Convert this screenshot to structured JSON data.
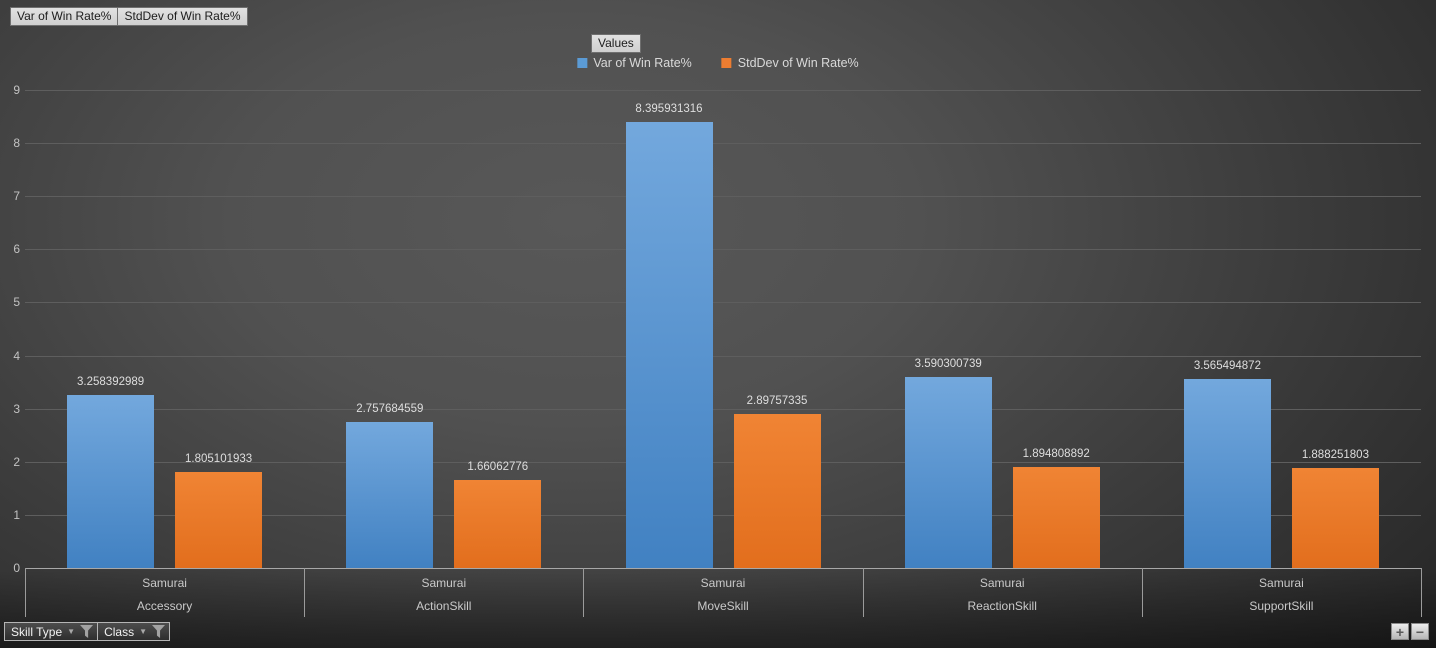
{
  "value_field_buttons": [
    {
      "label": "Var of Win Rate%"
    },
    {
      "label": "StdDev of Win Rate%"
    }
  ],
  "values_button_label": "Values",
  "legend": {
    "items": [
      {
        "label": "Var of Win Rate%",
        "color": "#5B9BD5"
      },
      {
        "label": "StdDev of Win Rate%",
        "color": "#ED7D31"
      }
    ]
  },
  "chart_data": {
    "type": "bar",
    "title": "",
    "xlabel": "",
    "ylabel": "",
    "ylim": [
      0,
      9
    ],
    "yticks": [
      0,
      1,
      2,
      3,
      4,
      5,
      6,
      7,
      8,
      9
    ],
    "grid": true,
    "legend_position": "top",
    "categories": [
      {
        "group": "Samurai",
        "label": "Accessory"
      },
      {
        "group": "Samurai",
        "label": "ActionSkill"
      },
      {
        "group": "Samurai",
        "label": "MoveSkill"
      },
      {
        "group": "Samurai",
        "label": "ReactionSkill"
      },
      {
        "group": "Samurai",
        "label": "SupportSkill"
      }
    ],
    "series": [
      {
        "name": "Var of Win Rate%",
        "key": "var-of-win-rate",
        "color_top": "#73A8DD",
        "color_bottom": "#4181C2",
        "values": [
          3.258392989,
          2.757684559,
          8.395931316,
          3.590300739,
          3.565494872
        ],
        "labels": [
          "3.258392989",
          "2.757684559",
          "8.395931316",
          "3.590300739",
          "3.565494872"
        ]
      },
      {
        "name": "StdDev of Win Rate%",
        "key": "stddev-of-win-rate",
        "color_top": "#F08434",
        "color_bottom": "#E26E1D",
        "values": [
          1.805101933,
          1.66062776,
          2.89757335,
          1.894808892,
          1.888251803
        ],
        "labels": [
          "1.805101933",
          "1.66062776",
          "2.89757335",
          "1.894808892",
          "1.888251803"
        ]
      }
    ]
  },
  "axis_field_buttons": [
    {
      "label": "Skill Type"
    },
    {
      "label": "Class"
    }
  ],
  "zoom_controls": {
    "plus": "+",
    "minus": "−"
  }
}
